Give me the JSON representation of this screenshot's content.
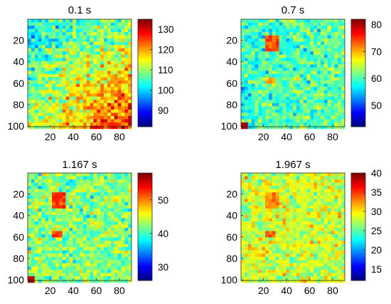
{
  "chart_data": [
    {
      "type": "heatmap",
      "title": "0.1 s",
      "colormap": "jet",
      "n_rows": 100,
      "n_cols": 90,
      "x_ticks": [
        20,
        40,
        60,
        80
      ],
      "y_ticks": [
        20,
        40,
        60,
        80,
        100
      ],
      "clim": [
        82,
        135
      ],
      "colorbar_ticks": [
        90,
        100,
        110,
        120,
        130
      ],
      "baseline": 112,
      "noise": 9,
      "trend": {
        "x": 5,
        "y": 8,
        "xy": 12
      },
      "hotspots": []
    },
    {
      "type": "heatmap",
      "title": "0.7 s",
      "colormap": "jet",
      "n_rows": 100,
      "n_cols": 90,
      "x_ticks": [
        20,
        40,
        60,
        80
      ],
      "y_ticks": [
        20,
        40,
        60,
        80,
        100
      ],
      "clim": [
        42,
        82
      ],
      "colorbar_ticks": [
        50,
        60,
        70,
        80
      ],
      "baseline": 60,
      "noise": 6,
      "trend": {
        "x": 2,
        "y": 1,
        "xy": 0
      },
      "hotspots": [
        {
          "cx": 27,
          "cy": 22,
          "w": 12,
          "h": 12,
          "value": 74
        },
        {
          "cx": 25,
          "cy": 57,
          "w": 6,
          "h": 4,
          "value": 70
        },
        {
          "cx": 2,
          "cy": 98,
          "w": 4,
          "h": 4,
          "value": 80
        }
      ]
    },
    {
      "type": "heatmap",
      "title": "1.167 s",
      "colormap": "jet",
      "n_rows": 100,
      "n_cols": 90,
      "x_ticks": [
        20,
        40,
        60,
        80
      ],
      "y_ticks": [
        20,
        40,
        60,
        80,
        100
      ],
      "clim": [
        26,
        58
      ],
      "colorbar_ticks": [
        30,
        40,
        50
      ],
      "baseline": 42,
      "noise": 5,
      "trend": {
        "x": 0,
        "y": 0,
        "xy": 0
      },
      "hotspots": [
        {
          "cx": 27,
          "cy": 25,
          "w": 12,
          "h": 12,
          "value": 52
        },
        {
          "cx": 25,
          "cy": 56,
          "w": 8,
          "h": 4,
          "value": 52
        },
        {
          "cx": 2,
          "cy": 98,
          "w": 4,
          "h": 4,
          "value": 56
        }
      ]
    },
    {
      "type": "heatmap",
      "title": "1.967 s",
      "colormap": "jet",
      "n_rows": 100,
      "n_cols": 90,
      "x_ticks": [
        20,
        40,
        60,
        80
      ],
      "y_ticks": [
        20,
        40,
        60,
        80,
        100
      ],
      "clim": [
        12,
        40
      ],
      "colorbar_ticks": [
        15,
        20,
        25,
        30,
        35,
        40
      ],
      "baseline": 28,
      "noise": 4,
      "trend": {
        "x": 0,
        "y": 0,
        "xy": 0
      },
      "hotspots": [
        {
          "cx": 27,
          "cy": 25,
          "w": 12,
          "h": 12,
          "value": 33
        },
        {
          "cx": 25,
          "cy": 56,
          "w": 6,
          "h": 4,
          "value": 34
        }
      ]
    }
  ]
}
